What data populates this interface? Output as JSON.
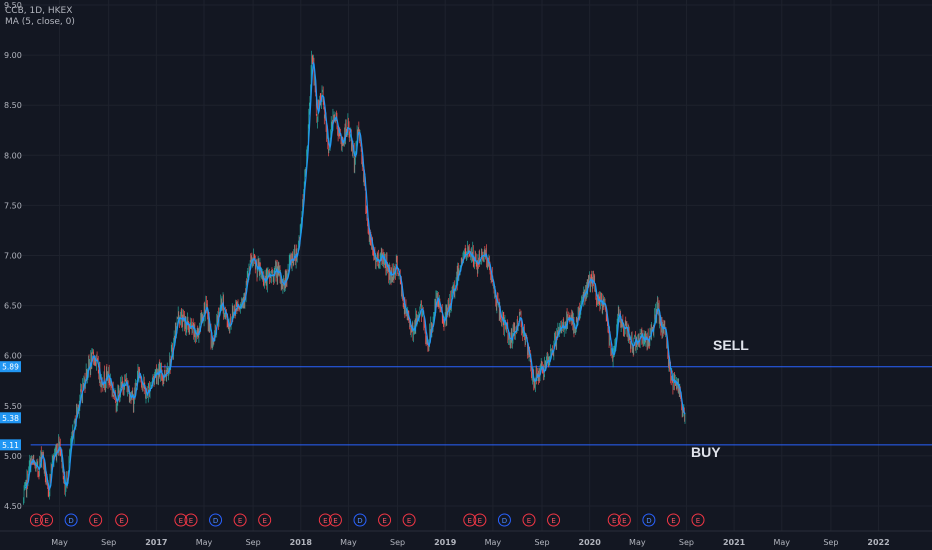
{
  "header": {
    "symbol_line": "CCB, 1D, HKEX",
    "indicator_line": "MA (5, close, 0)"
  },
  "annotations": {
    "sell": "SELL",
    "buy": "BUY"
  },
  "colors": {
    "background": "#131722",
    "up": "#26a69a",
    "down": "#ef5350",
    "ma": "#2196f3",
    "hline": "#2962ff",
    "badge": "#2196f3"
  },
  "chart_data": {
    "type": "candlestick",
    "ylim": [
      4.25,
      9.55
    ],
    "yticks": [
      "4.50",
      "5.00",
      "5.50",
      "6.00",
      "6.50",
      "7.00",
      "7.50",
      "8.00",
      "8.50",
      "9.00",
      "9.50"
    ],
    "xticks": [
      {
        "label": "May",
        "t": 2016.33
      },
      {
        "label": "Sep",
        "t": 2016.67
      },
      {
        "label": "2017",
        "t": 2017.0
      },
      {
        "label": "May",
        "t": 2017.33
      },
      {
        "label": "Sep",
        "t": 2017.67
      },
      {
        "label": "2018",
        "t": 2018.0
      },
      {
        "label": "May",
        "t": 2018.33
      },
      {
        "label": "Sep",
        "t": 2018.67
      },
      {
        "label": "2019",
        "t": 2019.0
      },
      {
        "label": "May",
        "t": 2019.33
      },
      {
        "label": "Sep",
        "t": 2019.67
      },
      {
        "label": "2020",
        "t": 2020.0
      },
      {
        "label": "May",
        "t": 2020.33
      },
      {
        "label": "Sep",
        "t": 2020.67
      },
      {
        "label": "2021",
        "t": 2021.0
      },
      {
        "label": "May",
        "t": 2021.33
      },
      {
        "label": "Sep",
        "t": 2021.67
      },
      {
        "label": "2022",
        "t": 2022.0
      }
    ],
    "xlim": [
      2016.07,
      2022.37
    ],
    "price_path": [
      [
        2016.08,
        4.55
      ],
      [
        2016.13,
        4.95
      ],
      [
        2016.18,
        4.85
      ],
      [
        2016.21,
        5.05
      ],
      [
        2016.25,
        4.6
      ],
      [
        2016.28,
        4.95
      ],
      [
        2016.33,
        5.15
      ],
      [
        2016.37,
        4.65
      ],
      [
        2016.41,
        5.1
      ],
      [
        2016.45,
        5.45
      ],
      [
        2016.52,
        5.85
      ],
      [
        2016.57,
        6.0
      ],
      [
        2016.62,
        5.75
      ],
      [
        2016.67,
        5.8
      ],
      [
        2016.72,
        5.55
      ],
      [
        2016.78,
        5.75
      ],
      [
        2016.84,
        5.55
      ],
      [
        2016.88,
        5.85
      ],
      [
        2016.93,
        5.6
      ],
      [
        2017.0,
        5.85
      ],
      [
        2017.05,
        5.8
      ],
      [
        2017.1,
        5.95
      ],
      [
        2017.15,
        6.4
      ],
      [
        2017.22,
        6.3
      ],
      [
        2017.28,
        6.2
      ],
      [
        2017.34,
        6.5
      ],
      [
        2017.39,
        6.1
      ],
      [
        2017.45,
        6.55
      ],
      [
        2017.5,
        6.3
      ],
      [
        2017.55,
        6.5
      ],
      [
        2017.6,
        6.55
      ],
      [
        2017.66,
        6.95
      ],
      [
        2017.71,
        6.85
      ],
      [
        2017.76,
        6.75
      ],
      [
        2017.83,
        6.85
      ],
      [
        2017.88,
        6.7
      ],
      [
        2017.93,
        6.95
      ],
      [
        2017.98,
        7.05
      ],
      [
        2018.02,
        7.6
      ],
      [
        2018.05,
        8.2
      ],
      [
        2018.08,
        9.05
      ],
      [
        2018.11,
        8.4
      ],
      [
        2018.15,
        8.6
      ],
      [
        2018.19,
        8.05
      ],
      [
        2018.23,
        8.45
      ],
      [
        2018.28,
        8.1
      ],
      [
        2018.33,
        8.3
      ],
      [
        2018.37,
        7.95
      ],
      [
        2018.4,
        8.3
      ],
      [
        2018.43,
        7.9
      ],
      [
        2018.47,
        7.2
      ],
      [
        2018.52,
        6.95
      ],
      [
        2018.57,
        7.0
      ],
      [
        2018.62,
        6.8
      ],
      [
        2018.67,
        6.9
      ],
      [
        2018.72,
        6.45
      ],
      [
        2018.78,
        6.25
      ],
      [
        2018.83,
        6.5
      ],
      [
        2018.88,
        6.1
      ],
      [
        2018.94,
        6.55
      ],
      [
        2019.0,
        6.35
      ],
      [
        2019.05,
        6.6
      ],
      [
        2019.11,
        6.95
      ],
      [
        2019.17,
        7.05
      ],
      [
        2019.22,
        6.9
      ],
      [
        2019.27,
        7.05
      ],
      [
        2019.31,
        6.85
      ],
      [
        2019.36,
        6.5
      ],
      [
        2019.41,
        6.3
      ],
      [
        2019.46,
        6.15
      ],
      [
        2019.52,
        6.4
      ],
      [
        2019.57,
        6.05
      ],
      [
        2019.61,
        5.75
      ],
      [
        2019.66,
        5.85
      ],
      [
        2019.71,
        5.9
      ],
      [
        2019.76,
        6.15
      ],
      [
        2019.81,
        6.3
      ],
      [
        2019.86,
        6.35
      ],
      [
        2019.9,
        6.3
      ],
      [
        2019.95,
        6.55
      ],
      [
        2020.0,
        6.75
      ],
      [
        2020.03,
        6.7
      ],
      [
        2020.06,
        6.5
      ],
      [
        2020.1,
        6.55
      ],
      [
        2020.13,
        6.25
      ],
      [
        2020.16,
        6.0
      ],
      [
        2020.2,
        6.4
      ],
      [
        2020.25,
        6.25
      ],
      [
        2020.3,
        6.1
      ],
      [
        2020.34,
        6.2
      ],
      [
        2020.4,
        6.15
      ],
      [
        2020.44,
        6.3
      ],
      [
        2020.47,
        6.5
      ],
      [
        2020.49,
        6.25
      ],
      [
        2020.52,
        6.3
      ],
      [
        2020.54,
        6.0
      ],
      [
        2020.57,
        5.75
      ],
      [
        2020.6,
        5.8
      ],
      [
        2020.63,
        5.55
      ],
      [
        2020.66,
        5.38
      ]
    ],
    "ma_label": "MA (5, close, 0)",
    "last_price": {
      "value": 5.38,
      "label": "5.38"
    },
    "horizontal_lines": [
      {
        "name": "sell-level",
        "value": 5.89,
        "label": "5.89",
        "start_t": 2017.02
      },
      {
        "name": "buy-level",
        "value": 5.11,
        "label": "5.11",
        "start_t": 2016.13
      }
    ],
    "events": [
      {
        "type": "E",
        "t": 2016.17
      },
      {
        "type": "E",
        "t": 2016.24
      },
      {
        "type": "D",
        "t": 2016.41
      },
      {
        "type": "E",
        "t": 2016.58
      },
      {
        "type": "E",
        "t": 2016.76
      },
      {
        "type": "E",
        "t": 2017.17
      },
      {
        "type": "E",
        "t": 2017.24
      },
      {
        "type": "D",
        "t": 2017.41
      },
      {
        "type": "E",
        "t": 2017.58
      },
      {
        "type": "E",
        "t": 2017.75
      },
      {
        "type": "E",
        "t": 2018.17
      },
      {
        "type": "E",
        "t": 2018.24
      },
      {
        "type": "D",
        "t": 2018.41
      },
      {
        "type": "E",
        "t": 2018.58
      },
      {
        "type": "E",
        "t": 2018.75
      },
      {
        "type": "E",
        "t": 2019.17
      },
      {
        "type": "E",
        "t": 2019.24
      },
      {
        "type": "D",
        "t": 2019.41
      },
      {
        "type": "E",
        "t": 2019.58
      },
      {
        "type": "E",
        "t": 2019.75
      },
      {
        "type": "E",
        "t": 2020.17
      },
      {
        "type": "E",
        "t": 2020.24
      },
      {
        "type": "D",
        "t": 2020.41
      },
      {
        "type": "E",
        "t": 2020.58
      },
      {
        "type": "E",
        "t": 2020.75
      }
    ]
  }
}
